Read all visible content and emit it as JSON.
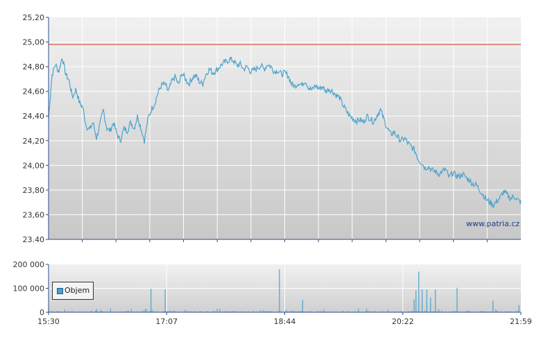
{
  "chart_data": [
    {
      "type": "line",
      "name": "price",
      "x_ticks": [
        "15:30",
        "17:07",
        "18:44",
        "20:22",
        "21:59"
      ],
      "y_ticks": [
        "25,20",
        "25,00",
        "24,80",
        "24,60",
        "24,40",
        "24,20",
        "24,00",
        "23,80",
        "23,60",
        "23.40"
      ],
      "ylim": [
        23.4,
        25.2
      ],
      "reference_line": 24.98,
      "colors": {
        "line": "#4aa3cc",
        "reference": "#d0311f"
      },
      "series": [
        {
          "values": [
            24.38,
            24.73,
            24.82,
            24.76,
            24.88,
            24.74,
            24.69,
            24.55,
            24.62,
            24.51,
            24.47,
            24.32,
            24.29,
            24.35,
            24.22,
            24.33,
            24.45,
            24.3,
            24.28,
            24.35,
            24.25,
            24.2,
            24.3,
            24.28,
            24.35,
            24.3,
            24.4,
            24.3,
            24.2,
            24.37,
            24.45,
            24.5,
            24.59,
            24.65,
            24.66,
            24.6,
            24.68,
            24.72,
            24.65,
            24.75,
            24.7,
            24.66,
            24.71,
            24.73,
            24.68,
            24.66,
            24.74,
            24.78,
            24.75,
            24.77,
            24.8,
            24.83,
            24.84,
            24.86,
            24.85,
            24.81,
            24.82,
            24.78,
            24.8,
            24.76,
            24.77,
            24.79,
            24.81,
            24.78,
            24.82,
            24.8,
            24.76,
            24.77,
            24.74,
            24.75,
            24.73,
            24.66,
            24.64,
            24.67,
            24.65,
            24.69,
            24.63,
            24.61,
            24.65,
            24.62,
            24.64,
            24.6,
            24.62,
            24.6,
            24.57,
            24.55,
            24.49,
            24.44,
            24.4,
            24.38,
            24.36,
            24.37,
            24.35,
            24.4,
            24.38,
            24.35,
            24.41,
            24.45,
            24.37,
            24.3,
            24.25,
            24.27,
            24.23,
            24.2,
            24.22,
            24.18,
            24.15,
            24.12,
            24.05,
            24.02,
            23.98,
            23.99,
            23.96,
            23.95,
            23.93,
            23.95,
            23.97,
            23.9,
            23.94,
            23.92,
            23.91,
            23.93,
            23.9,
            23.88,
            23.85,
            23.84,
            23.8,
            23.76,
            23.72,
            23.7,
            23.68,
            23.71,
            23.74,
            23.79,
            23.76,
            23.73,
            23.75,
            23.72,
            23.7
          ]
        }
      ]
    },
    {
      "type": "bar",
      "name": "volume",
      "y_ticks": [
        "200 000",
        "100 000",
        "0"
      ],
      "ylim": [
        0,
        200000
      ],
      "legend": "Objem",
      "colors": {
        "bar": "#4aa3cc"
      },
      "spikes": [
        {
          "pos": 0.216,
          "value": 98000
        },
        {
          "pos": 0.246,
          "value": 95000
        },
        {
          "pos": 0.488,
          "value": 180000
        },
        {
          "pos": 0.537,
          "value": 52000
        },
        {
          "pos": 0.777,
          "value": 92000
        },
        {
          "pos": 0.773,
          "value": 54000
        },
        {
          "pos": 0.783,
          "value": 170000
        },
        {
          "pos": 0.79,
          "value": 95000
        },
        {
          "pos": 0.8,
          "value": 95000
        },
        {
          "pos": 0.808,
          "value": 62000
        },
        {
          "pos": 0.818,
          "value": 95000
        },
        {
          "pos": 0.864,
          "value": 102000
        },
        {
          "pos": 0.94,
          "value": 48000
        },
        {
          "pos": 0.995,
          "value": 30000
        }
      ]
    }
  ],
  "watermark": "www.patria.cz"
}
